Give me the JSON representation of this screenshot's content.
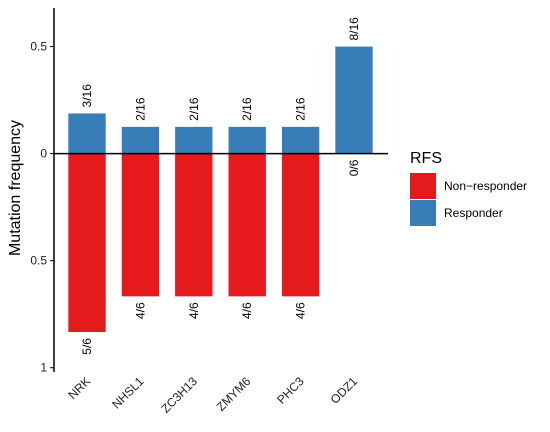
{
  "chart_data": {
    "type": "bar",
    "y_label": "Mutation frequency",
    "categories": [
      "NRK",
      "NHSL1",
      "ZC3H13",
      "ZMYM6",
      "PHC3",
      "ODZ1"
    ],
    "series": [
      {
        "name": "Non−responder",
        "color": "#e41a1c",
        "values": [
          -0.8333,
          -0.6667,
          -0.6667,
          -0.6667,
          -0.6667,
          0
        ],
        "value_labels": [
          "5/6",
          "4/6",
          "4/6",
          "4/6",
          "4/6",
          "0/6"
        ]
      },
      {
        "name": "Responder",
        "color": "#377eb8",
        "values": [
          0.1875,
          0.125,
          0.125,
          0.125,
          0.125,
          0.5
        ],
        "value_labels": [
          "3/16",
          "2/16",
          "2/16",
          "2/16",
          "2/16",
          "8/16"
        ]
      }
    ],
    "legend_title": "RFS",
    "legend_position": "right",
    "ylim": [
      -1.02,
      0.68
    ],
    "yticks": [
      {
        "value": -1,
        "label": "1"
      },
      {
        "value": -0.5,
        "label": "0.5"
      },
      0,
      0.5
    ],
    "grid": false
  }
}
